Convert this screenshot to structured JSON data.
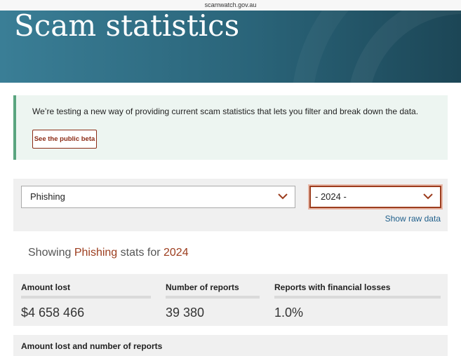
{
  "browser": {
    "url": "scamwatch.gov.au"
  },
  "header": {
    "title": "Scam statistics"
  },
  "notice": {
    "text": "We’re testing a new way of providing current scam statistics that lets you filter and break down the data.",
    "button": "See the public beta"
  },
  "filters": {
    "scam_type": "Phishing",
    "year": "- 2024 -",
    "link": "Show raw data"
  },
  "summary": {
    "prefix": "Showing ",
    "scam_type": "Phishing",
    "middle": " stats for ",
    "year": "2024"
  },
  "stats": [
    {
      "label": "Amount lost",
      "value": "$4 658 466"
    },
    {
      "label": "Number of reports",
      "value": "39 380"
    },
    {
      "label": "Reports with financial losses",
      "value": "1.0%"
    }
  ],
  "section": {
    "title": "Amount lost and number of reports"
  }
}
